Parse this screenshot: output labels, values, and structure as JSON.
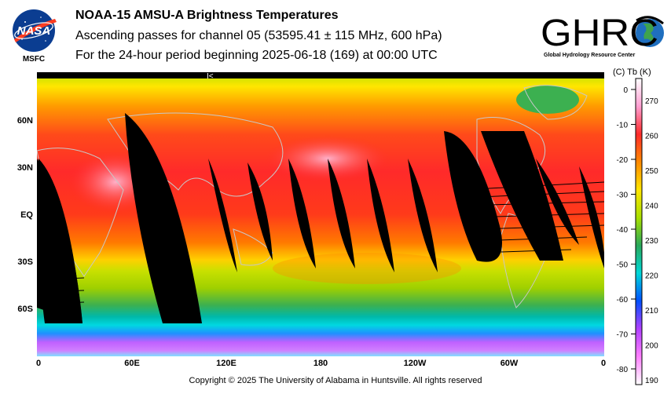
{
  "header": {
    "title": "NOAA-15 AMSU-A Brightness Temperatures",
    "subtitle": "Ascending passes for channel 05 (53595.41 ± 115 MHz, 600 hPa)",
    "period": "For the 24-hour period beginning 2025-06-18 (169) at 00:00 UTC"
  },
  "logos": {
    "left_text": "NASA",
    "left_caption": "MSFC",
    "right_text": "GHRC",
    "right_caption": "Global Hydrology Resource Center"
  },
  "map": {
    "pass_marker": "I<",
    "y_ticks": [
      "60N",
      "30N",
      "EQ",
      "30S",
      "60S"
    ],
    "x_ticks": [
      "0",
      "60E",
      "120E",
      "180",
      "120W",
      "60W",
      "0"
    ]
  },
  "colorbar": {
    "header": "(C)  Tb  (K)",
    "celsius_ticks": [
      "0",
      "-10",
      "-20",
      "-30",
      "-40",
      "-50",
      "-60",
      "-70",
      "-80"
    ],
    "kelvin_ticks": [
      "270",
      "260",
      "250",
      "240",
      "230",
      "220",
      "210",
      "200",
      "190"
    ],
    "colors": [
      "#ffffff",
      "#ff9fd2",
      "#ff2a2a",
      "#ff8a00",
      "#ffe600",
      "#a8e000",
      "#29a85a",
      "#00d8d8",
      "#0050ff",
      "#b040ff",
      "#ff80ff",
      "#ffffff"
    ]
  },
  "footer": {
    "copyright": "Copyright © 2025 The University of Alabama in Huntsville.  All rights reserved"
  }
}
